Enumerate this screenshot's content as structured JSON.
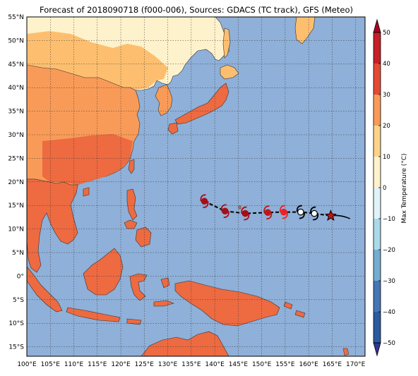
{
  "title": "Forecast of 2018090718 (f000-006), Sources: GDACS (TC track), GFS (Meteo)",
  "map": {
    "lon_labels": [
      "100°E",
      "105°E",
      "110°E",
      "115°E",
      "120°E",
      "125°E",
      "130°E",
      "135°E",
      "140°E",
      "145°E",
      "150°E",
      "155°E",
      "160°E",
      "165°E",
      "170°E"
    ],
    "lat_labels": [
      "55°N",
      "50°N",
      "45°N",
      "40°N",
      "35°N",
      "30°N",
      "25°N",
      "20°N",
      "15°N",
      "10°N",
      "5°N",
      "0°",
      "5°S",
      "10°S",
      "15°S"
    ],
    "lon_range": [
      100,
      172
    ],
    "lat_range": [
      -17,
      55
    ],
    "ocean_color": "#8fb0d8",
    "land_colors": {
      "cool": "#fef2cc",
      "mild": "#fdbf6f",
      "warm": "#f99b58",
      "hot": "#ee6a41"
    }
  },
  "track": {
    "points": [
      {
        "lon": 137.8,
        "lat": 15.9,
        "color": "#a50f15"
      },
      {
        "lon": 142.2,
        "lat": 13.8,
        "color": "#a50f15"
      },
      {
        "lon": 146.5,
        "lat": 13.3,
        "color": "#a50f15"
      },
      {
        "lon": 151.3,
        "lat": 13.5,
        "color": "#bb1818"
      },
      {
        "lon": 154.7,
        "lat": 13.6,
        "color": "#ee2222"
      },
      {
        "lon": 158.3,
        "lat": 13.6,
        "color": "#000000"
      },
      {
        "lon": 161.2,
        "lat": 13.3,
        "color": "#000000"
      }
    ],
    "current": {
      "lon": 164.7,
      "lat": 12.8,
      "color": "#c81414"
    },
    "tail_end": {
      "lon": 168.8,
      "lat": 12.2
    }
  },
  "colorbar": {
    "label": "Max Temperature (°C)",
    "ticks": [
      "50",
      "40",
      "30",
      "20",
      "10",
      "0",
      "−10",
      "−20",
      "−30",
      "−40",
      "−50"
    ],
    "colors": [
      "#a50026",
      "#c62027",
      "#e34a33",
      "#f99b58",
      "#fdd28a",
      "#fef2cc",
      "#e0f3f8",
      "#abd9e9",
      "#74add1",
      "#4575b4",
      "#2c5aa0",
      "#313695"
    ]
  }
}
